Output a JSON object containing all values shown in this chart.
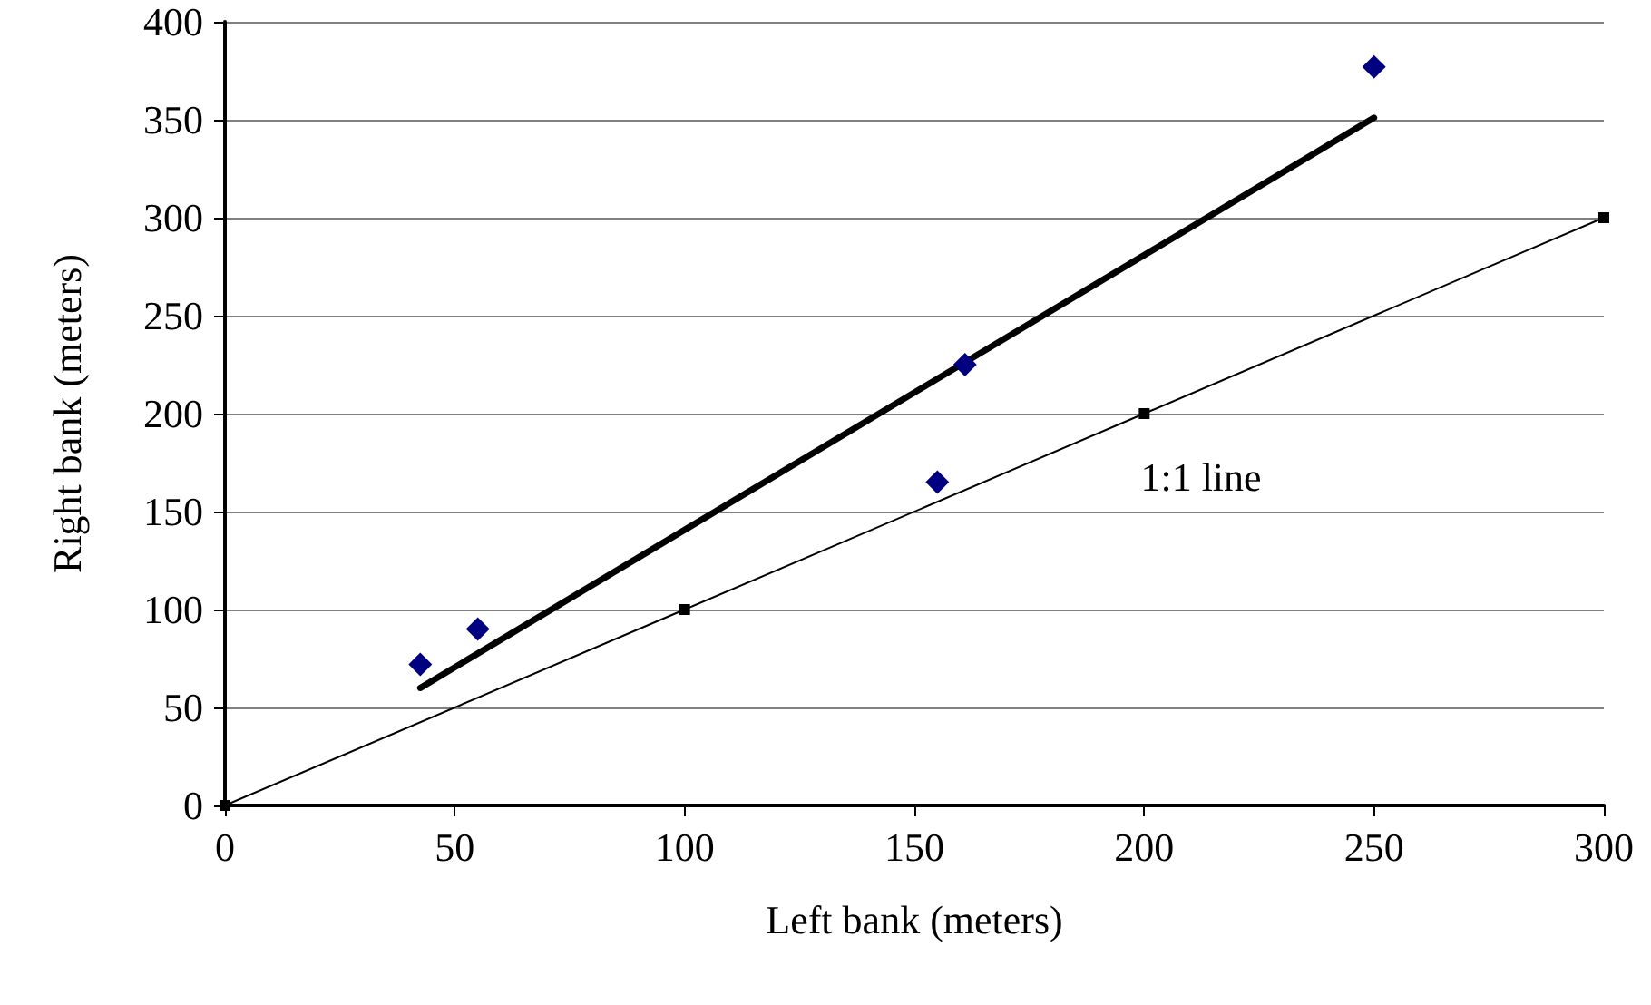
{
  "chart_data": {
    "type": "scatter",
    "xlabel": "Left bank (meters)",
    "ylabel": "Right bank (meters)",
    "series": [
      {
        "color": "#000080",
        "marker": "diamond",
        "x": [
          42.5,
          55,
          155,
          161,
          250
        ],
        "values": [
          72,
          90,
          165,
          225,
          377
        ]
      },
      {
        "type": "line",
        "color": "#000000",
        "marker": "none",
        "x": [
          42.5,
          250
        ],
        "values": [
          60,
          351
        ]
      },
      {
        "type": "line",
        "color": "#000000",
        "marker": "square",
        "x": [
          0,
          100,
          200,
          300
        ],
        "values": [
          0,
          100,
          200,
          300
        ]
      }
    ],
    "annotations": [
      "1:1 line"
    ],
    "xlim": [
      0,
      300
    ],
    "xticks": [
      0,
      50,
      100,
      150,
      200,
      250,
      300
    ],
    "ylim": [
      0,
      400
    ],
    "yticks": [
      0,
      50,
      100,
      150,
      200,
      250,
      300,
      350,
      400
    ],
    "grid": "y"
  }
}
